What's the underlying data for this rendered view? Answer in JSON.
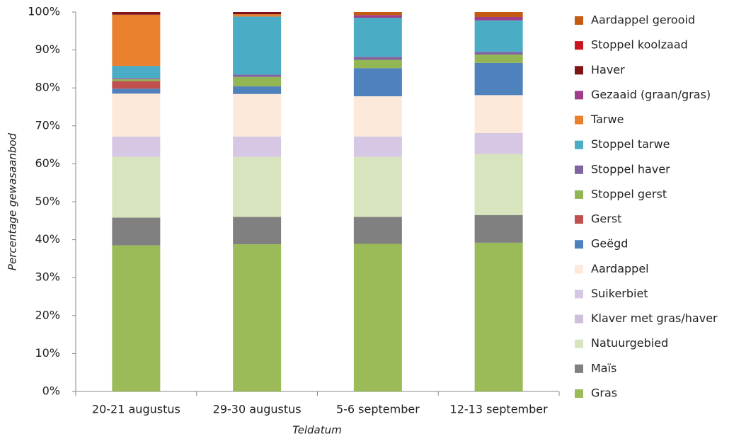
{
  "chart_data": {
    "type": "stacked_bar",
    "x_label": "Teldatum",
    "y_label": "Percentage gewasaanbod",
    "categories": [
      "20-21 augustus",
      "29-30 augustus",
      "5-6 september",
      "12-13 september"
    ],
    "ylim": [
      0,
      100
    ],
    "yticks": [
      {
        "value": 0,
        "label": "0%"
      },
      {
        "value": 10,
        "label": "10%"
      },
      {
        "value": 20,
        "label": "20%"
      },
      {
        "value": 30,
        "label": "30%"
      },
      {
        "value": 40,
        "label": "40%"
      },
      {
        "value": 50,
        "label": "50%"
      },
      {
        "value": 60,
        "label": "60%"
      },
      {
        "value": 70,
        "label": "70%"
      },
      {
        "value": 80,
        "label": "80%"
      },
      {
        "value": 90,
        "label": "90%"
      },
      {
        "value": 100,
        "label": "100%"
      }
    ],
    "legend": "right",
    "series": [
      {
        "name": "Gras",
        "color": "#9bbb59",
        "values": [
          38.5,
          38.8,
          38.9,
          39.2
        ]
      },
      {
        "name": "Maïs",
        "color": "#808080",
        "values": [
          7.3,
          7.2,
          7.1,
          7.3
        ]
      },
      {
        "name": "Natuurgebied",
        "color": "#d7e4bd",
        "values": [
          16.0,
          15.8,
          15.8,
          16.1
        ]
      },
      {
        "name": "Klaver met gras/haver",
        "color": "#ccc0da",
        "values": [
          0,
          0,
          0,
          0
        ]
      },
      {
        "name": "Suikerbiet",
        "color": "#d6c8e4",
        "values": [
          5.4,
          5.4,
          5.4,
          5.5
        ]
      },
      {
        "name": "Aardappel",
        "color": "#fde9d9",
        "values": [
          11.3,
          11.2,
          10.6,
          10.0
        ]
      },
      {
        "name": "Geëgd",
        "color": "#4f81bd",
        "values": [
          1.3,
          2.0,
          7.4,
          8.5
        ]
      },
      {
        "name": "Gerst",
        "color": "#c0504d",
        "values": [
          2.0,
          0,
          0,
          0
        ]
      },
      {
        "name": "Stoppel gerst",
        "color": "#93b654",
        "values": [
          0.5,
          2.5,
          2.2,
          2.2
        ]
      },
      {
        "name": "Stoppel haver",
        "color": "#8064a2",
        "values": [
          0.3,
          0.6,
          0.8,
          0.7
        ]
      },
      {
        "name": "Stoppel tarwe",
        "color": "#4bacc6",
        "values": [
          3.2,
          15.3,
          10.3,
          8.3
        ]
      },
      {
        "name": "Tarwe",
        "color": "#e8802e",
        "values": [
          13.5,
          0.6,
          0,
          0
        ]
      },
      {
        "name": "Gezaaid (graan/gras)",
        "color": "#9e3d8a",
        "values": [
          0,
          0,
          0.7,
          0.9
        ]
      },
      {
        "name": "Haver",
        "color": "#7f1416",
        "values": [
          0.7,
          0.6,
          0,
          0
        ]
      },
      {
        "name": "Stoppel koolzaad",
        "color": "#c8161e",
        "values": [
          0,
          0,
          0,
          0
        ]
      },
      {
        "name": "Aardappel gerooid",
        "color": "#c55a11",
        "values": [
          0,
          0,
          0.8,
          1.3
        ]
      }
    ]
  }
}
